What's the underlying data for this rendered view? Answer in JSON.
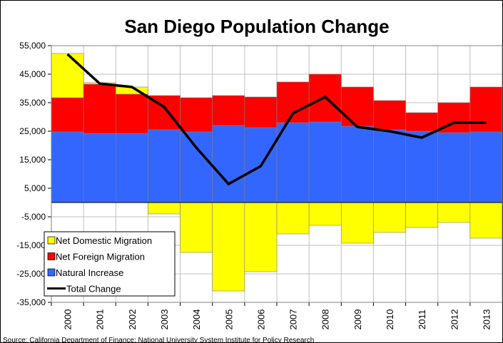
{
  "chart_data": {
    "type": "bar",
    "title": "San Diego Population Change",
    "source": "Source: California Department of Finance; National University System Institute for Policy Research",
    "categories": [
      "2000",
      "2001",
      "2002",
      "2003",
      "2004",
      "2005",
      "2006",
      "2007",
      "2008",
      "2009",
      "2010",
      "2011",
      "2012",
      "2013"
    ],
    "series": [
      {
        "name": "Net Domestic Migration",
        "color": "#ffff00",
        "values": [
          15500,
          500,
          2500,
          -4000,
          -17500,
          -31000,
          -24250,
          -11000,
          -8000,
          -14250,
          -10500,
          -8750,
          -7000,
          -12500
        ]
      },
      {
        "name": "Net Foreign Migration",
        "color": "#ff0000",
        "values": [
          12000,
          17250,
          13750,
          12000,
          12000,
          10500,
          10750,
          14250,
          16750,
          13750,
          10250,
          6500,
          10500,
          15750
        ]
      },
      {
        "name": "Natural Increase",
        "color": "#3366ff",
        "values": [
          24750,
          24250,
          24250,
          25500,
          24750,
          27000,
          26250,
          28000,
          28250,
          26750,
          25500,
          25000,
          24500,
          24750
        ]
      },
      {
        "name": "Total Change",
        "color": "#000000",
        "type": "line",
        "values": [
          52000,
          41700,
          40500,
          33500,
          19250,
          6500,
          12750,
          31250,
          37000,
          26500,
          25000,
          22750,
          28000,
          28000
        ]
      }
    ],
    "ylim": [
      -35000,
      55000
    ],
    "yticks": [
      {
        "value": -35000,
        "label": "-35,000"
      },
      {
        "value": -25000,
        "label": "-25,000"
      },
      {
        "value": -15000,
        "label": "-15,000"
      },
      {
        "value": -5000,
        "label": "-5,000"
      },
      {
        "value": 5000,
        "label": "5,000"
      },
      {
        "value": 15000,
        "label": "15,000"
      },
      {
        "value": 25000,
        "label": "25,000"
      },
      {
        "value": 35000,
        "label": "35,000"
      },
      {
        "value": 45000,
        "label": "45,000"
      },
      {
        "value": 55000,
        "label": "55,000"
      }
    ],
    "grid": true,
    "legend": "lower left"
  }
}
